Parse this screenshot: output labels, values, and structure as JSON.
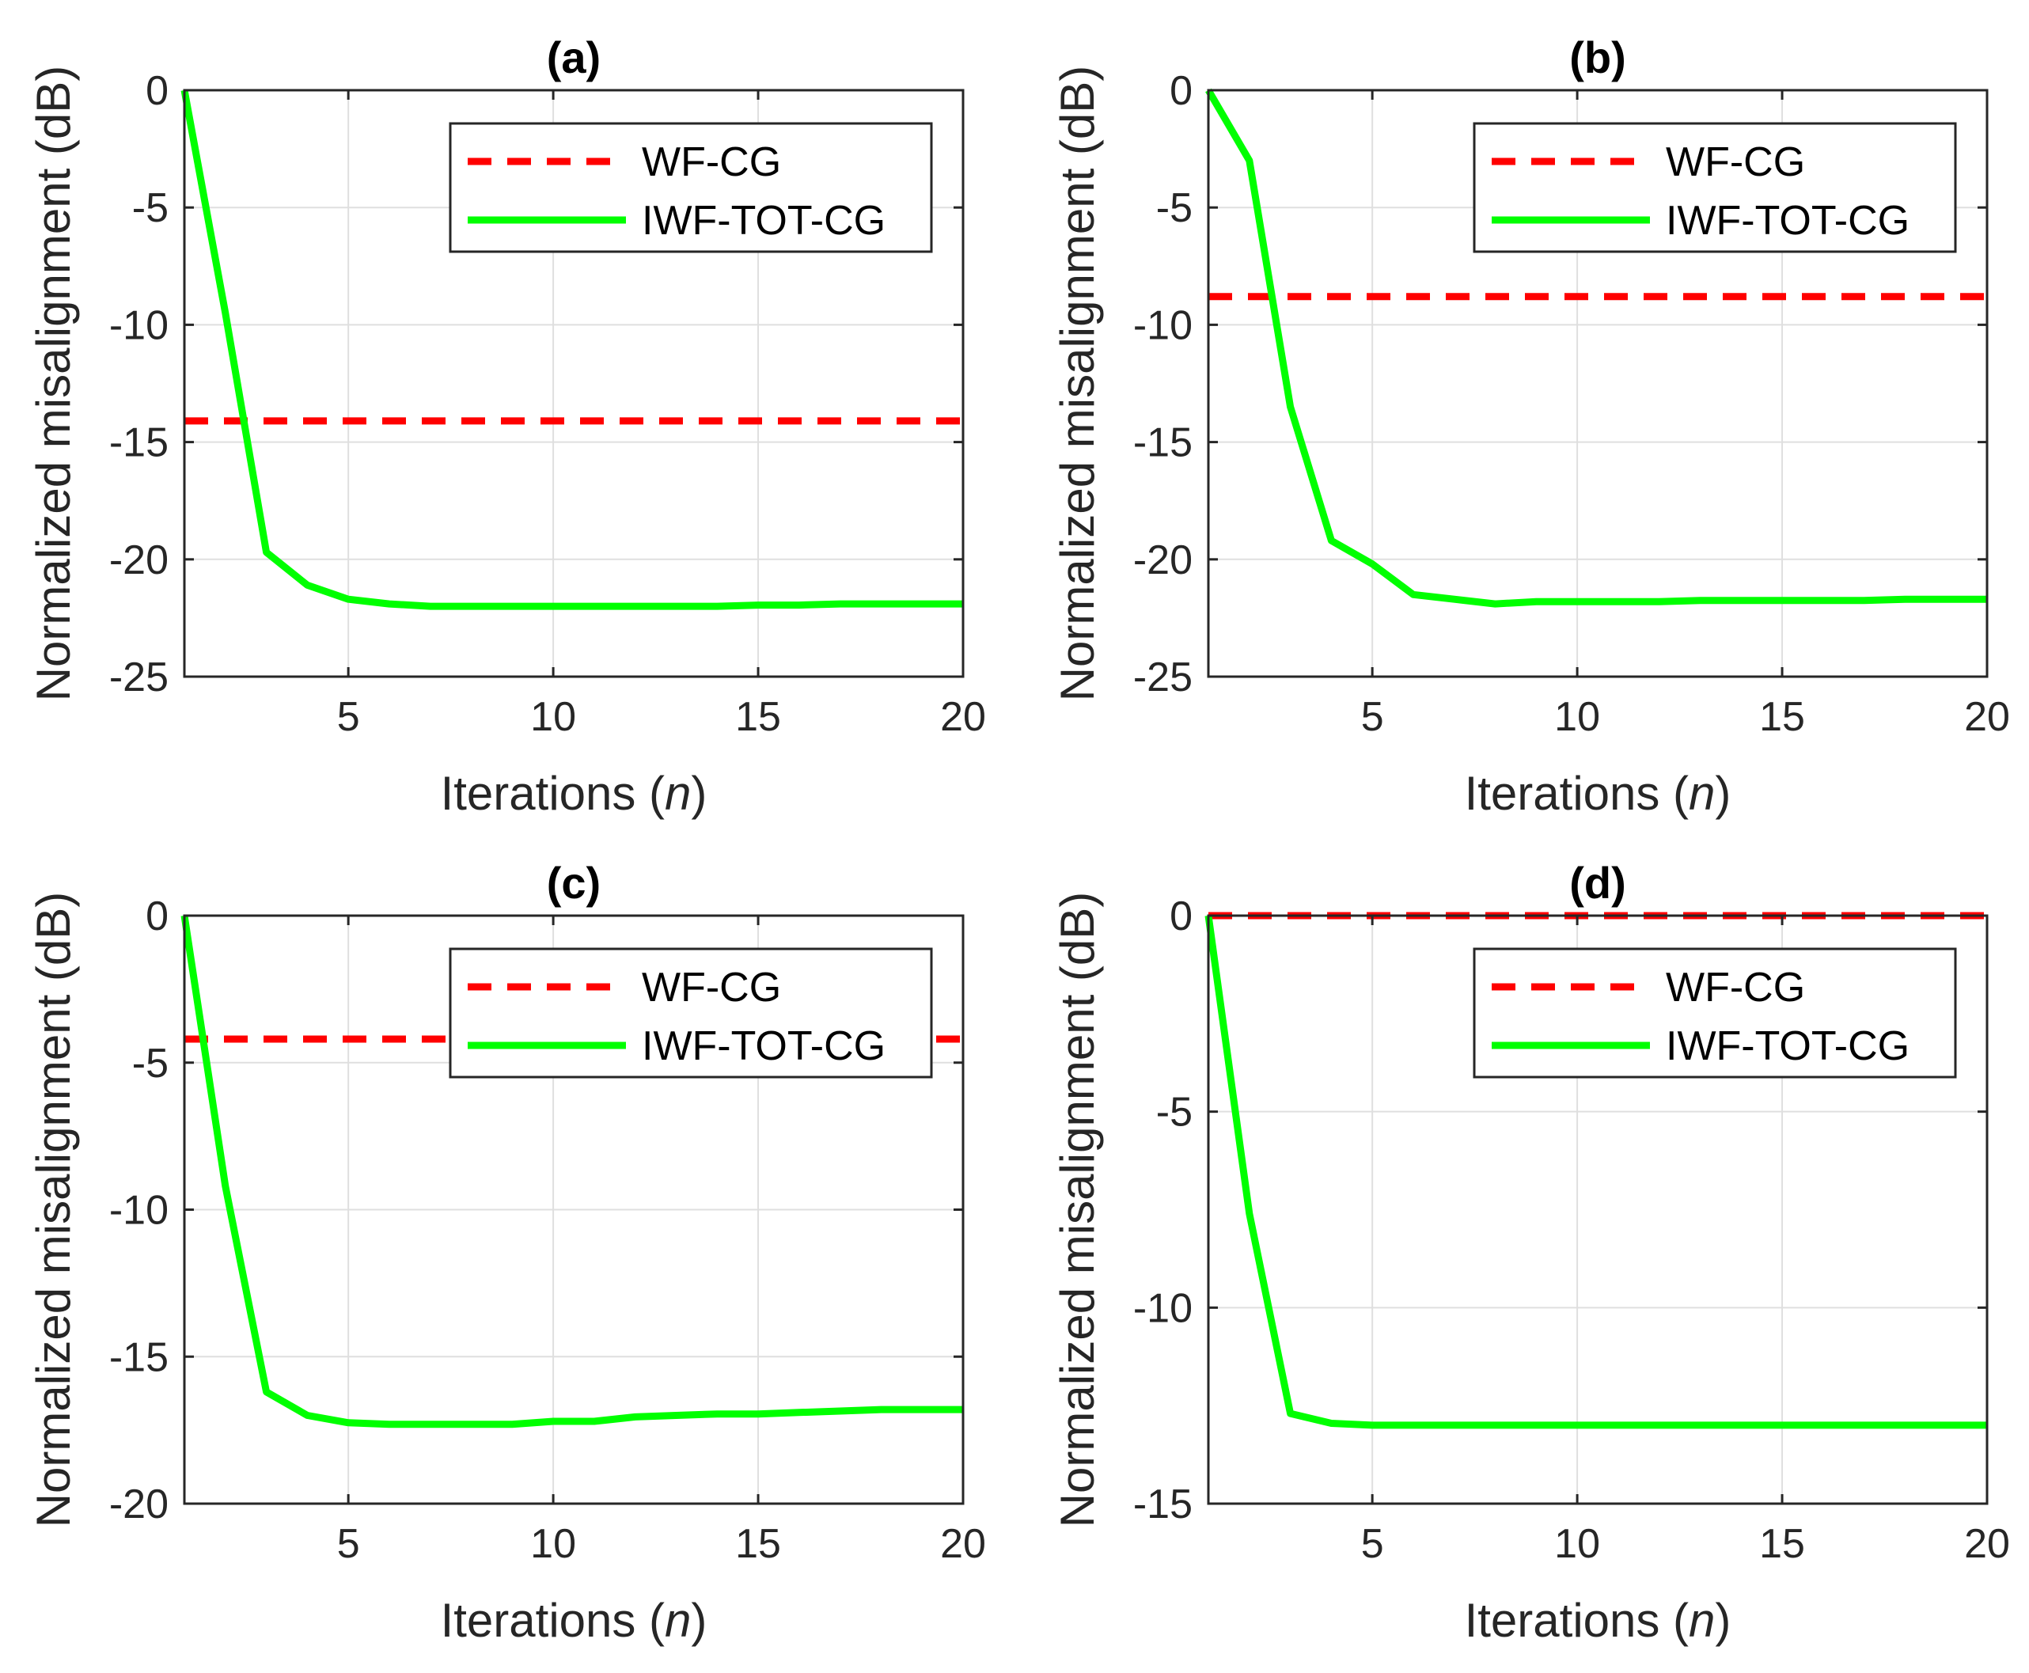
{
  "colors": {
    "wf": "#ff0000",
    "iwf": "#00ff00",
    "axis": "#262626",
    "grid": "#dfdfdf"
  },
  "chart_data": [
    {
      "type": "line",
      "title": "(a)",
      "xlabel": "Iterations",
      "xlabel_var": "n",
      "ylabel": "Normalized misalignment (dB)",
      "xlim": [
        1,
        20
      ],
      "ylim": [
        -25,
        0
      ],
      "xticks": [
        5,
        10,
        15,
        20
      ],
      "xtick_labels": [
        "5",
        "10",
        "15",
        "20"
      ],
      "yticks": [
        0,
        -5,
        -10,
        -15,
        -20,
        -25
      ],
      "ytick_labels": [
        "0",
        "-5",
        "-10",
        "-15",
        "-20",
        "-25"
      ],
      "grid": true,
      "legend": "top-right",
      "x": [
        1,
        2,
        3,
        4,
        5,
        6,
        7,
        8,
        9,
        10,
        11,
        12,
        13,
        14,
        15,
        16,
        17,
        18,
        19,
        20
      ],
      "series": [
        {
          "name": "WF-CG",
          "style": "dashed",
          "values": [
            -14.1,
            -14.1,
            -14.1,
            -14.1,
            -14.1,
            -14.1,
            -14.1,
            -14.1,
            -14.1,
            -14.1,
            -14.1,
            -14.1,
            -14.1,
            -14.1,
            -14.1,
            -14.1,
            -14.1,
            -14.1,
            -14.1,
            -14.1
          ]
        },
        {
          "name": "IWF-TOT-CG",
          "style": "solid",
          "values": [
            0,
            -9.5,
            -19.7,
            -21.1,
            -21.7,
            -21.9,
            -22.0,
            -22.0,
            -22.0,
            -22.0,
            -22.0,
            -22.0,
            -22.0,
            -22.0,
            -21.95,
            -21.95,
            -21.9,
            -21.9,
            -21.9,
            -21.9
          ]
        }
      ]
    },
    {
      "type": "line",
      "title": "(b)",
      "xlabel": "Iterations",
      "xlabel_var": "n",
      "ylabel": "Normalized misalignment (dB)",
      "xlim": [
        1,
        20
      ],
      "ylim": [
        -25,
        0
      ],
      "xticks": [
        5,
        10,
        15,
        20
      ],
      "xtick_labels": [
        "5",
        "10",
        "15",
        "20"
      ],
      "yticks": [
        0,
        -5,
        -10,
        -15,
        -20,
        -25
      ],
      "ytick_labels": [
        "0",
        "-5",
        "-10",
        "-15",
        "-20",
        "-25"
      ],
      "grid": true,
      "legend": "top-right",
      "x": [
        1,
        2,
        3,
        4,
        5,
        6,
        7,
        8,
        9,
        10,
        11,
        12,
        13,
        14,
        15,
        16,
        17,
        18,
        19,
        20
      ],
      "series": [
        {
          "name": "WF-CG",
          "style": "dashed",
          "values": [
            -8.8,
            -8.8,
            -8.8,
            -8.8,
            -8.8,
            -8.8,
            -8.8,
            -8.8,
            -8.8,
            -8.8,
            -8.8,
            -8.8,
            -8.8,
            -8.8,
            -8.8,
            -8.8,
            -8.8,
            -8.8,
            -8.8,
            -8.8
          ]
        },
        {
          "name": "IWF-TOT-CG",
          "style": "solid",
          "values": [
            0,
            -3.0,
            -13.5,
            -19.2,
            -20.2,
            -21.5,
            -21.7,
            -21.9,
            -21.8,
            -21.8,
            -21.8,
            -21.8,
            -21.75,
            -21.75,
            -21.75,
            -21.75,
            -21.75,
            -21.7,
            -21.7,
            -21.7
          ]
        }
      ]
    },
    {
      "type": "line",
      "title": "(c)",
      "xlabel": "Iterations",
      "xlabel_var": "n",
      "ylabel": "Normalized misalignment (dB)",
      "xlim": [
        1,
        20
      ],
      "ylim": [
        -20,
        0
      ],
      "xticks": [
        5,
        10,
        15,
        20
      ],
      "xtick_labels": [
        "5",
        "10",
        "15",
        "20"
      ],
      "yticks": [
        0,
        -5,
        -10,
        -15,
        -20
      ],
      "ytick_labels": [
        "0",
        "-5",
        "-10",
        "-15",
        "-20"
      ],
      "grid": true,
      "legend": "top-right",
      "x": [
        1,
        2,
        3,
        4,
        5,
        6,
        7,
        8,
        9,
        10,
        11,
        12,
        13,
        14,
        15,
        16,
        17,
        18,
        19,
        20
      ],
      "series": [
        {
          "name": "WF-CG",
          "style": "dashed",
          "values": [
            -4.2,
            -4.2,
            -4.2,
            -4.2,
            -4.2,
            -4.2,
            -4.2,
            -4.2,
            -4.2,
            -4.2,
            -4.2,
            -4.2,
            -4.2,
            -4.2,
            -4.2,
            -4.2,
            -4.2,
            -4.2,
            -4.2,
            -4.2
          ]
        },
        {
          "name": "IWF-TOT-CG",
          "style": "solid",
          "values": [
            0,
            -9.2,
            -16.2,
            -17.0,
            -17.25,
            -17.3,
            -17.3,
            -17.3,
            -17.3,
            -17.2,
            -17.2,
            -17.05,
            -17.0,
            -16.95,
            -16.95,
            -16.9,
            -16.85,
            -16.8,
            -16.8,
            -16.8
          ]
        }
      ]
    },
    {
      "type": "line",
      "title": "(d)",
      "xlabel": "Iterations",
      "xlabel_var": "n",
      "ylabel": "Normalized misalignment (dB)",
      "xlim": [
        1,
        20
      ],
      "ylim": [
        -15,
        0
      ],
      "xticks": [
        5,
        10,
        15,
        20
      ],
      "xtick_labels": [
        "5",
        "10",
        "15",
        "20"
      ],
      "yticks": [
        0,
        -5,
        -10,
        -15
      ],
      "ytick_labels": [
        "0",
        "-5",
        "-10",
        "-15"
      ],
      "grid": true,
      "legend": "top-right",
      "x": [
        1,
        2,
        3,
        4,
        5,
        6,
        7,
        8,
        9,
        10,
        11,
        12,
        13,
        14,
        15,
        16,
        17,
        18,
        19,
        20
      ],
      "series": [
        {
          "name": "WF-CG",
          "style": "dashed",
          "values": [
            0,
            0,
            0,
            0,
            0,
            0,
            0,
            0,
            0,
            0,
            0,
            0,
            0,
            0,
            0,
            0,
            0,
            0,
            0,
            0
          ]
        },
        {
          "name": "IWF-TOT-CG",
          "style": "solid",
          "values": [
            0,
            -7.6,
            -12.7,
            -12.95,
            -13.0,
            -13.0,
            -13.0,
            -13.0,
            -13.0,
            -13.0,
            -13.0,
            -13.0,
            -13.0,
            -13.0,
            -13.0,
            -13.0,
            -13.0,
            -13.0,
            -13.0,
            -13.0
          ]
        }
      ]
    }
  ]
}
